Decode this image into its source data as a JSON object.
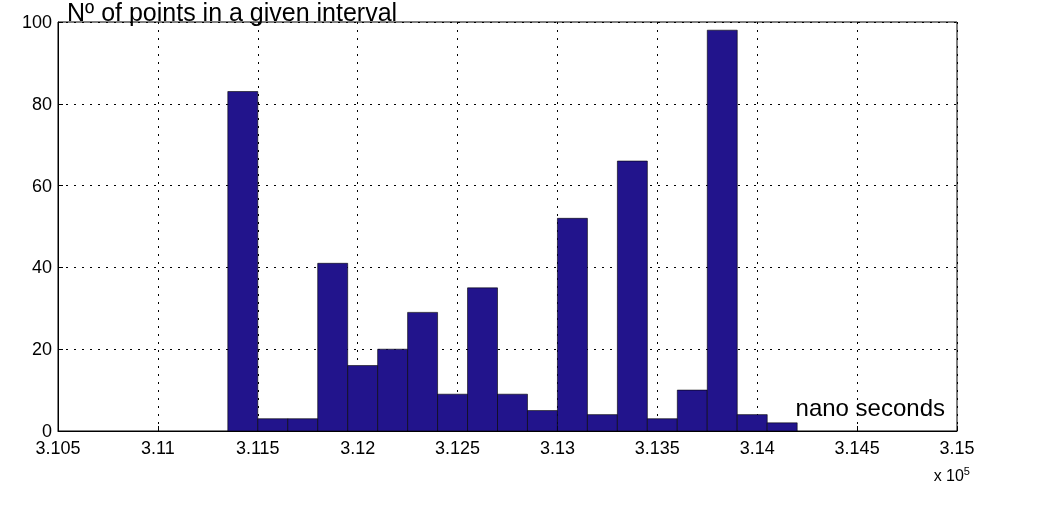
{
  "chart_data": {
    "type": "histogram",
    "title": "Nº of points in a given interval",
    "xlabel": "nano seconds",
    "bins": [
      3.1135,
      3.115,
      3.1165,
      3.118,
      3.1195,
      3.121,
      3.1225,
      3.124,
      3.1255,
      3.127,
      3.1285,
      3.13,
      3.1315,
      3.133,
      3.1345,
      3.136,
      3.1375,
      3.139,
      3.1405,
      3.142
    ],
    "values": [
      83,
      3,
      3,
      41,
      16,
      20,
      29,
      9,
      35,
      9,
      5,
      52,
      4,
      66,
      3,
      10,
      98,
      4,
      2
    ],
    "color": "#22148c",
    "xlim": [
      3.105,
      3.15
    ],
    "xticks": [
      3.105,
      3.11,
      3.115,
      3.12,
      3.125,
      3.13,
      3.135,
      3.14,
      3.145,
      3.15
    ],
    "ylim": [
      0,
      100
    ],
    "yticks": [
      0,
      20,
      40,
      60,
      80,
      100
    ],
    "grid": true,
    "annotations": [
      "x 10$^{5}$"
    ]
  }
}
